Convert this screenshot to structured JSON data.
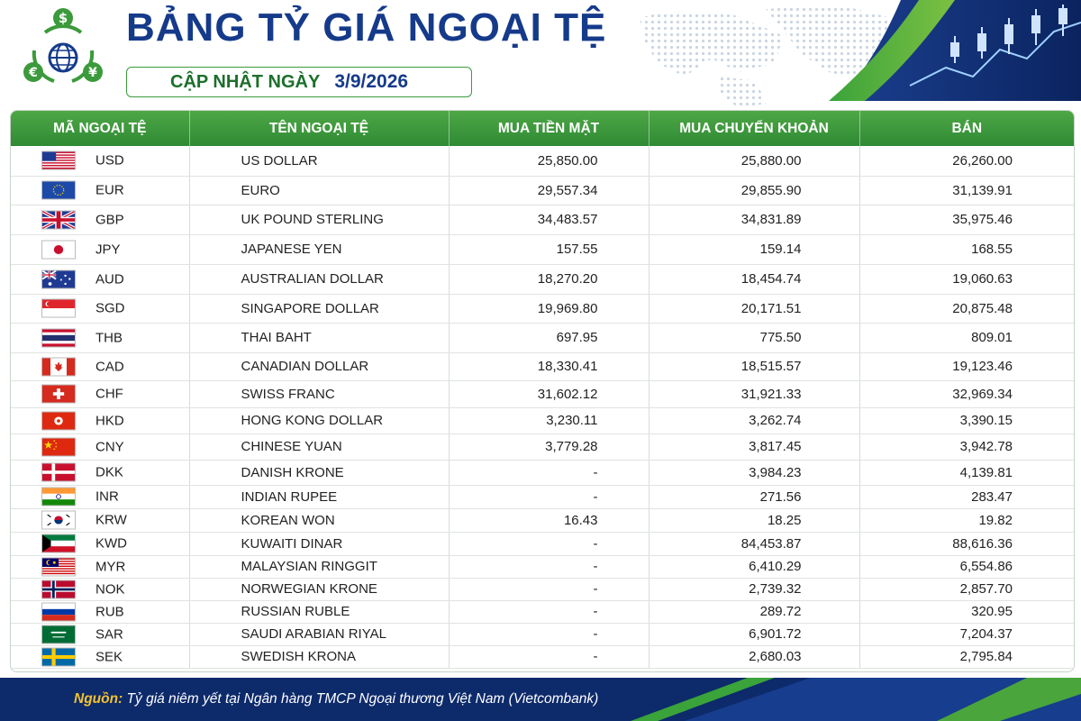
{
  "title": "BẢNG TỶ GIÁ NGOẠI TỆ",
  "subtitle": {
    "label": "CẬP NHẬT NGÀY",
    "date": "3/9/2026"
  },
  "headers": {
    "code": "MÃ NGOẠI TỆ",
    "name": "TÊN NGOẠI TỆ",
    "cash_buy": "MUA TIỀN MẶT",
    "transfer_buy": "MUA CHUYỂN KHOẢN",
    "sell": "BÁN"
  },
  "rows": [
    {
      "flag": "us-flag-icon",
      "code": "USD",
      "name": "US DOLLAR",
      "cash": "25,850.00",
      "transfer": "25,880.00",
      "sell": "26,260.00"
    },
    {
      "flag": "eu-flag-icon",
      "code": "EUR",
      "name": "EURO",
      "cash": "29,557.34",
      "transfer": "29,855.90",
      "sell": "31,139.91"
    },
    {
      "flag": "uk-flag-icon",
      "code": "GBP",
      "name": "UK POUND STERLING",
      "cash": "34,483.57",
      "transfer": "34,831.89",
      "sell": "35,975.46"
    },
    {
      "flag": "japan-flag-icon",
      "code": "JPY",
      "name": "JAPANESE YEN",
      "cash": "157.55",
      "transfer": "159.14",
      "sell": "168.55"
    },
    {
      "flag": "australia-flag-icon",
      "code": "AUD",
      "name": "AUSTRALIAN DOLLAR",
      "cash": "18,270.20",
      "transfer": "18,454.74",
      "sell": "19,060.63"
    },
    {
      "flag": "singapore-flag-icon",
      "code": "SGD",
      "name": "SINGAPORE DOLLAR",
      "cash": "19,969.80",
      "transfer": "20,171.51",
      "sell": "20,875.48"
    },
    {
      "flag": "thailand-flag-icon",
      "code": "THB",
      "name": "THAI BAHT",
      "cash": "697.95",
      "transfer": "775.50",
      "sell": "809.01"
    },
    {
      "flag": "canada-flag-icon",
      "code": "CAD",
      "name": "CANADIAN DOLLAR",
      "cash": "18,330.41",
      "transfer": "18,515.57",
      "sell": "19,123.46"
    },
    {
      "flag": "switzerland-flag-icon",
      "code": "CHF",
      "name": "SWISS FRANC",
      "cash": "31,602.12",
      "transfer": "31,921.33",
      "sell": "32,969.34"
    },
    {
      "flag": "hongkong-flag-icon",
      "code": "HKD",
      "name": "HONG KONG DOLLAR",
      "cash": "3,230.11",
      "transfer": "3,262.74",
      "sell": "3,390.15"
    },
    {
      "flag": "china-flag-icon",
      "code": "CNY",
      "name": "CHINESE YUAN",
      "cash": "3,779.28",
      "transfer": "3,817.45",
      "sell": "3,942.78"
    },
    {
      "flag": "denmark-flag-icon",
      "code": "DKK",
      "name": "DANISH KRONE",
      "cash": "-",
      "transfer": "3,984.23",
      "sell": "4,139.81"
    },
    {
      "flag": "india-flag-icon",
      "code": "INR",
      "name": "INDIAN RUPEE",
      "cash": "-",
      "transfer": "271.56",
      "sell": "283.47"
    },
    {
      "flag": "korea-flag-icon",
      "code": "KRW",
      "name": "KOREAN WON",
      "cash": "16.43",
      "transfer": "18.25",
      "sell": "19.82"
    },
    {
      "flag": "kuwait-flag-icon",
      "code": "KWD",
      "name": "KUWAITI DINAR",
      "cash": "-",
      "transfer": "84,453.87",
      "sell": "88,616.36"
    },
    {
      "flag": "malaysia-flag-icon",
      "code": "MYR",
      "name": "MALAYSIAN RINGGIT",
      "cash": "-",
      "transfer": "6,410.29",
      "sell": "6,554.86"
    },
    {
      "flag": "norway-flag-icon",
      "code": "NOK",
      "name": "NORWEGIAN KRONE",
      "cash": "-",
      "transfer": "2,739.32",
      "sell": "2,857.70"
    },
    {
      "flag": "russia-flag-icon",
      "code": "RUB",
      "name": "RUSSIAN RUBLE",
      "cash": "-",
      "transfer": "289.72",
      "sell": "320.95"
    },
    {
      "flag": "saudi-flag-icon",
      "code": "SAR",
      "name": "SAUDI ARABIAN RIYAL",
      "cash": "-",
      "transfer": "6,901.72",
      "sell": "7,204.37"
    },
    {
      "flag": "sweden-flag-icon",
      "code": "SEK",
      "name": "SWEDISH KRONA",
      "cash": "-",
      "transfer": "2,680.03",
      "sell": "2,795.84"
    }
  ],
  "footer": {
    "label": "Nguồn:",
    "source": "Tỷ giá niêm yết tại Ngân hàng TMCP Ngoại thương Việt Nam (Vietcombank)"
  },
  "colors": {
    "title": "#153a8a",
    "header_green": "#2f8a34",
    "footer_navy": "#0d2a6b",
    "footer_label": "#f2c230"
  },
  "icons": {
    "logo": "currency-exchange-logo-icon",
    "chart": "stock-chart-decoration-icon",
    "map": "world-map-decoration-icon"
  }
}
